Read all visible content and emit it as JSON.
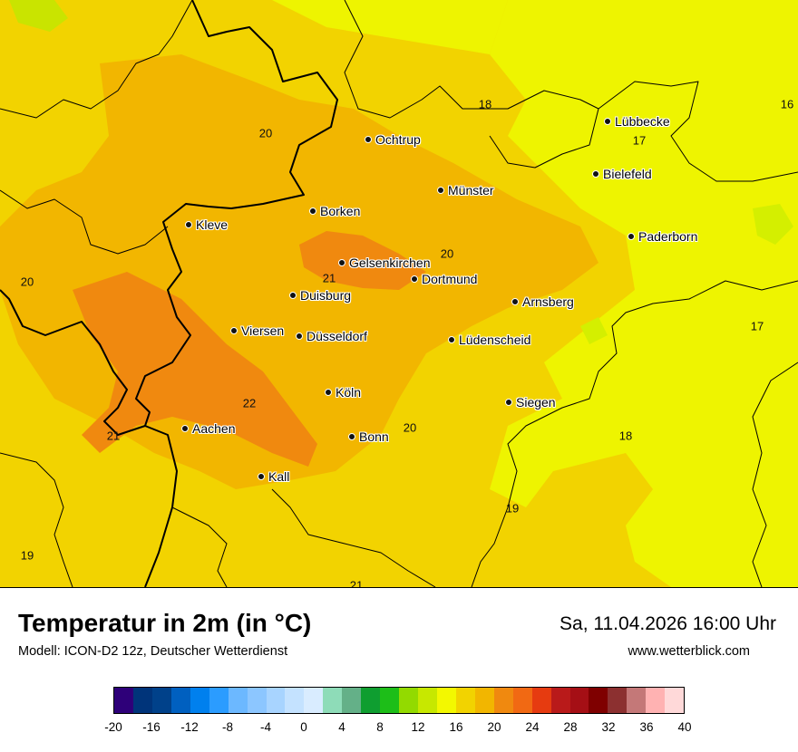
{
  "map": {
    "cities": [
      {
        "name": "Ochtrup"
      },
      {
        "name": "Lübbecke"
      },
      {
        "name": "Bielefeld"
      },
      {
        "name": "Münster"
      },
      {
        "name": "Borken"
      },
      {
        "name": "Kleve"
      },
      {
        "name": "Paderborn"
      },
      {
        "name": "Gelsenkirchen"
      },
      {
        "name": "Dortmund"
      },
      {
        "name": "Duisburg"
      },
      {
        "name": "Arnsberg"
      },
      {
        "name": "Viersen"
      },
      {
        "name": "Düsseldorf"
      },
      {
        "name": "Lüdenscheid"
      },
      {
        "name": "Köln"
      },
      {
        "name": "Siegen"
      },
      {
        "name": "Aachen"
      },
      {
        "name": "Bonn"
      },
      {
        "name": "Kall"
      }
    ],
    "temperature_labels": [
      "18",
      "16",
      "20",
      "17",
      "20",
      "21",
      "20",
      "17",
      "22",
      "20",
      "21",
      "18",
      "19",
      "19",
      "21"
    ]
  },
  "header": {
    "title": "Temperatur in 2m (in °C)",
    "model": "Modell: ICON-D2 12z, Deutscher Wetterdienst",
    "datetime": "Sa, 11.04.2026 16:00 Uhr",
    "website": "www.wetterblick.com"
  },
  "legend": {
    "colors": [
      "#2e0079",
      "#00347a",
      "#00418a",
      "#0060c0",
      "#0080ee",
      "#2b9cff",
      "#6cb8ff",
      "#8cc6ff",
      "#a8d4ff",
      "#c4e2ff",
      "#d9ecff",
      "#8edcb8",
      "#64b088",
      "#0f9e30",
      "#1dbe18",
      "#93da00",
      "#c7e800",
      "#f3f800",
      "#f2d300",
      "#f2b600",
      "#f0890f",
      "#f16913",
      "#e63b10",
      "#b91a1a",
      "#a50f15",
      "#7f0000",
      "#8c3030",
      "#c47878",
      "#ffb2b2",
      "#ffd9d9"
    ],
    "ticks": [
      "-20",
      "-16",
      "-12",
      "-8",
      "-4",
      "0",
      "4",
      "8",
      "12",
      "16",
      "20",
      "24",
      "28",
      "32",
      "36",
      "40"
    ]
  }
}
